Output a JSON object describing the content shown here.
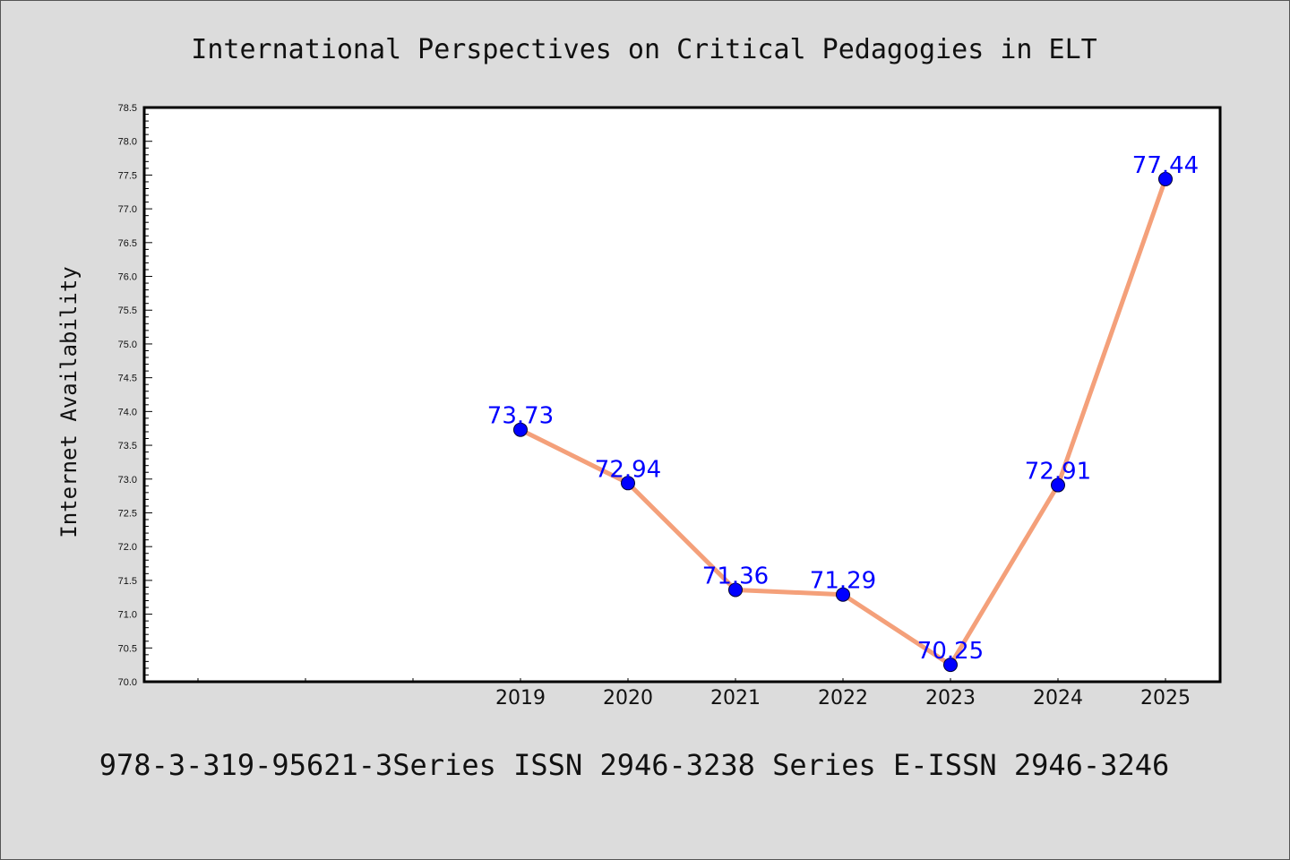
{
  "chart_data": {
    "type": "line",
    "title": "International Perspectives on Critical Pedagogies in ELT",
    "ylabel": "Internet Availability",
    "xlabel": "",
    "footer": "978-3-319-95621-3Series ISSN 2946-3238 Series E-ISSN 2946-3246",
    "x_ticks": [
      "",
      "",
      "",
      "2019",
      "2020",
      "2021",
      "2022",
      "2023",
      "2024",
      "2025"
    ],
    "categories": [
      "2019",
      "2020",
      "2021",
      "2022",
      "2023",
      "2024",
      "2025"
    ],
    "series": [
      {
        "values": [
          73.73,
          72.94,
          71.36,
          71.29,
          70.25,
          72.91,
          77.44
        ]
      }
    ],
    "data_labels": [
      "73.73",
      "72.94",
      "71.36",
      "71.29",
      "70.25",
      "72.91",
      "77.44"
    ],
    "ylim": [
      70.0,
      78.5
    ],
    "y_ticks": [
      "70.0",
      "70.5",
      "71.0",
      "71.5",
      "72.0",
      "72.5",
      "73.0",
      "73.5",
      "74.0",
      "74.5",
      "75.0",
      "75.5",
      "76.0",
      "76.5",
      "77.0",
      "77.5",
      "78.0",
      "78.5"
    ],
    "grid": false,
    "colors": {
      "line": "#f4a07a",
      "marker": "#0000ff",
      "label": "#0000ff",
      "plot_bg": "#ffffff",
      "page_bg": "#dcdcdc"
    }
  }
}
